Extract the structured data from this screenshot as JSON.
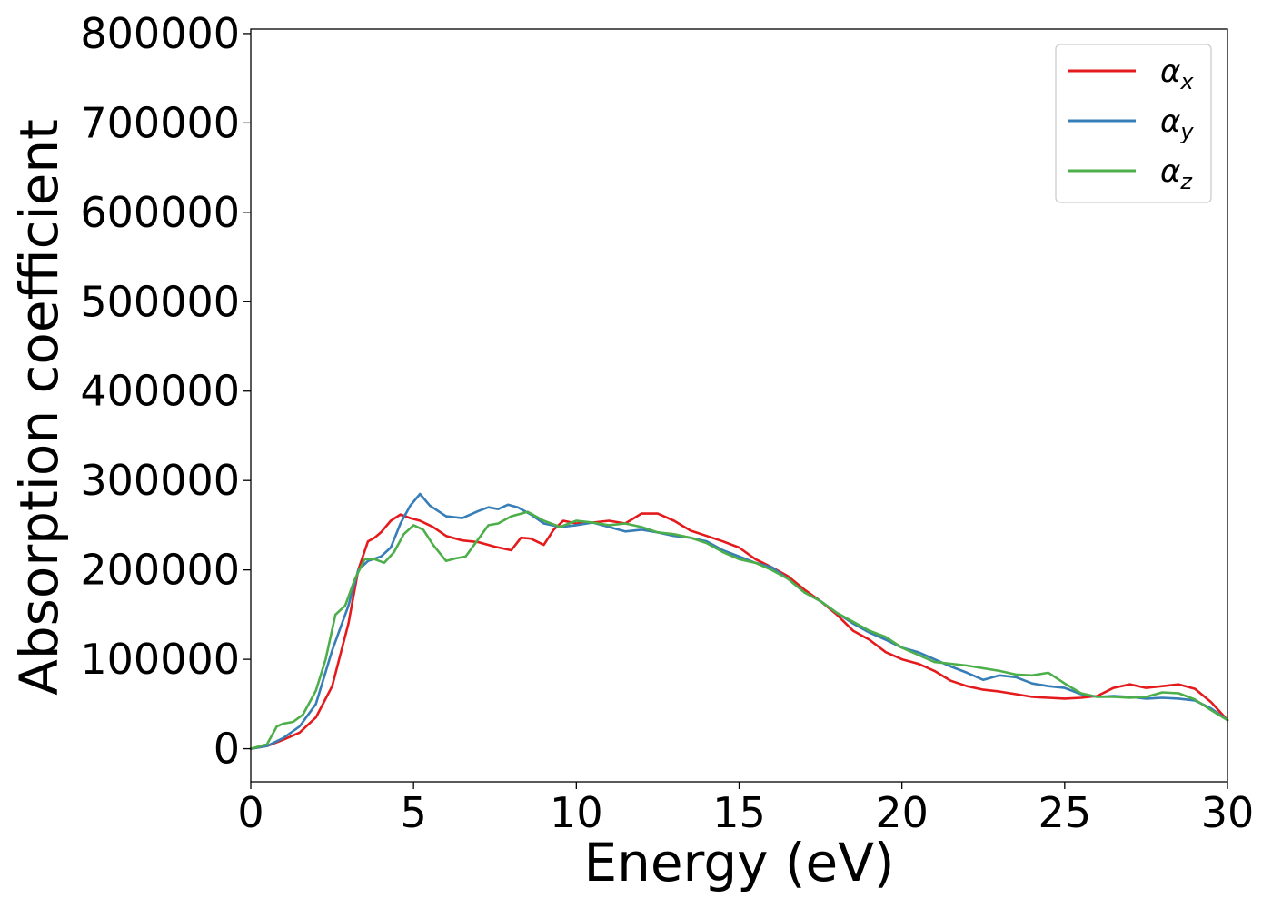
{
  "chart_data": {
    "type": "line",
    "xlabel": "Energy (eV)",
    "ylabel": "Absorption coefficient",
    "xlim": [
      0,
      30
    ],
    "ylim": [
      -37000,
      805000
    ],
    "xticks": [
      0,
      5,
      10,
      15,
      20,
      25,
      30
    ],
    "yticks": [
      0,
      100000,
      200000,
      300000,
      400000,
      500000,
      600000,
      700000,
      800000
    ],
    "grid": false,
    "legend_position": "top-right",
    "series": [
      {
        "name": "αx",
        "name_base": "α",
        "name_sub": "x",
        "color": "#e41a1c",
        "x": [
          0,
          0.5,
          1.0,
          1.5,
          2.0,
          2.5,
          3.0,
          3.3,
          3.6,
          3.8,
          4.0,
          4.3,
          4.6,
          4.9,
          5.2,
          5.6,
          6.0,
          6.5,
          7.0,
          7.5,
          8.0,
          8.3,
          8.6,
          9.0,
          9.3,
          9.6,
          10.0,
          10.5,
          11.0,
          11.5,
          12.0,
          12.5,
          13.0,
          13.5,
          14.0,
          14.5,
          15.0,
          15.5,
          16.0,
          16.5,
          17.0,
          17.5,
          18.0,
          18.5,
          19.0,
          19.5,
          20.0,
          20.5,
          21.0,
          21.5,
          22.0,
          22.5,
          23.0,
          23.5,
          24.0,
          24.5,
          25.0,
          25.5,
          26.0,
          26.5,
          27.0,
          27.5,
          28.0,
          28.5,
          29.0,
          29.5,
          30.0
        ],
        "y": [
          0,
          3000,
          10000,
          18000,
          35000,
          70000,
          140000,
          200000,
          232000,
          236000,
          242000,
          255000,
          262000,
          258000,
          255000,
          248000,
          238000,
          233000,
          231000,
          226000,
          222000,
          236000,
          235000,
          228000,
          245000,
          255000,
          252000,
          253000,
          255000,
          252000,
          263000,
          263000,
          255000,
          244000,
          238000,
          232000,
          225000,
          212000,
          203000,
          193000,
          178000,
          165000,
          150000,
          132000,
          122000,
          108000,
          100000,
          95000,
          87000,
          76000,
          70000,
          66000,
          64000,
          61000,
          58000,
          57000,
          56000,
          57000,
          59000,
          68000,
          72000,
          68000,
          70000,
          72000,
          67000,
          52000,
          32000
        ]
      },
      {
        "name": "αy",
        "name_base": "α",
        "name_sub": "y",
        "color": "#377eb8",
        "x": [
          0,
          0.5,
          1.0,
          1.5,
          2.0,
          2.5,
          3.0,
          3.3,
          3.6,
          4.0,
          4.3,
          4.6,
          4.9,
          5.2,
          5.5,
          6.0,
          6.5,
          7.0,
          7.3,
          7.6,
          7.9,
          8.2,
          8.6,
          9.0,
          9.5,
          10.0,
          10.5,
          11.0,
          11.5,
          12.0,
          12.5,
          13.0,
          13.5,
          14.0,
          14.5,
          15.0,
          15.5,
          16.0,
          16.5,
          17.0,
          17.5,
          18.0,
          18.5,
          19.0,
          19.5,
          20.0,
          20.5,
          21.0,
          21.5,
          22.0,
          22.5,
          23.0,
          23.5,
          24.0,
          24.5,
          25.0,
          25.5,
          26.0,
          26.5,
          27.0,
          27.5,
          28.0,
          28.5,
          29.0,
          29.5,
          30.0
        ],
        "y": [
          0,
          3000,
          12000,
          25000,
          50000,
          110000,
          160000,
          200000,
          210000,
          215000,
          225000,
          252000,
          272000,
          285000,
          272000,
          260000,
          258000,
          266000,
          270000,
          268000,
          273000,
          270000,
          262000,
          252000,
          248000,
          250000,
          253000,
          248000,
          243000,
          245000,
          242000,
          238000,
          236000,
          232000,
          222000,
          215000,
          208000,
          203000,
          190000,
          175000,
          165000,
          152000,
          140000,
          130000,
          122000,
          113000,
          108000,
          100000,
          92000,
          85000,
          77000,
          82000,
          80000,
          73000,
          70000,
          68000,
          61000,
          58000,
          59000,
          58000,
          56000,
          57000,
          56000,
          54000,
          45000,
          32000
        ]
      },
      {
        "name": "αz",
        "name_base": "α",
        "name_sub": "z",
        "color": "#4daf4a",
        "x": [
          0,
          0.5,
          0.8,
          1.0,
          1.3,
          1.6,
          2.0,
          2.3,
          2.6,
          2.9,
          3.2,
          3.5,
          3.8,
          4.1,
          4.4,
          4.7,
          5.0,
          5.3,
          5.6,
          6.0,
          6.3,
          6.6,
          7.0,
          7.3,
          7.6,
          8.0,
          8.5,
          9.0,
          9.5,
          10.0,
          10.5,
          11.0,
          11.5,
          12.0,
          12.5,
          13.0,
          13.5,
          14.0,
          14.5,
          15.0,
          15.5,
          16.0,
          16.5,
          17.0,
          17.5,
          18.0,
          18.5,
          19.0,
          19.5,
          20.0,
          20.5,
          21.0,
          21.5,
          22.0,
          22.5,
          23.0,
          23.5,
          24.0,
          24.5,
          25.0,
          25.5,
          26.0,
          26.5,
          27.0,
          27.5,
          28.0,
          28.5,
          29.0,
          29.5,
          30.0
        ],
        "y": [
          0,
          5000,
          25000,
          28000,
          30000,
          38000,
          65000,
          100000,
          150000,
          160000,
          190000,
          212000,
          212000,
          208000,
          220000,
          240000,
          250000,
          245000,
          228000,
          210000,
          213000,
          215000,
          235000,
          250000,
          252000,
          260000,
          265000,
          255000,
          248000,
          255000,
          253000,
          250000,
          252000,
          248000,
          242000,
          240000,
          236000,
          230000,
          220000,
          212000,
          208000,
          200000,
          190000,
          175000,
          165000,
          152000,
          142000,
          132000,
          125000,
          113000,
          105000,
          97000,
          95000,
          93000,
          90000,
          87000,
          83000,
          82000,
          85000,
          73000,
          62000,
          58000,
          58000,
          57000,
          58000,
          63000,
          62000,
          55000,
          43000,
          32000
        ]
      }
    ]
  }
}
